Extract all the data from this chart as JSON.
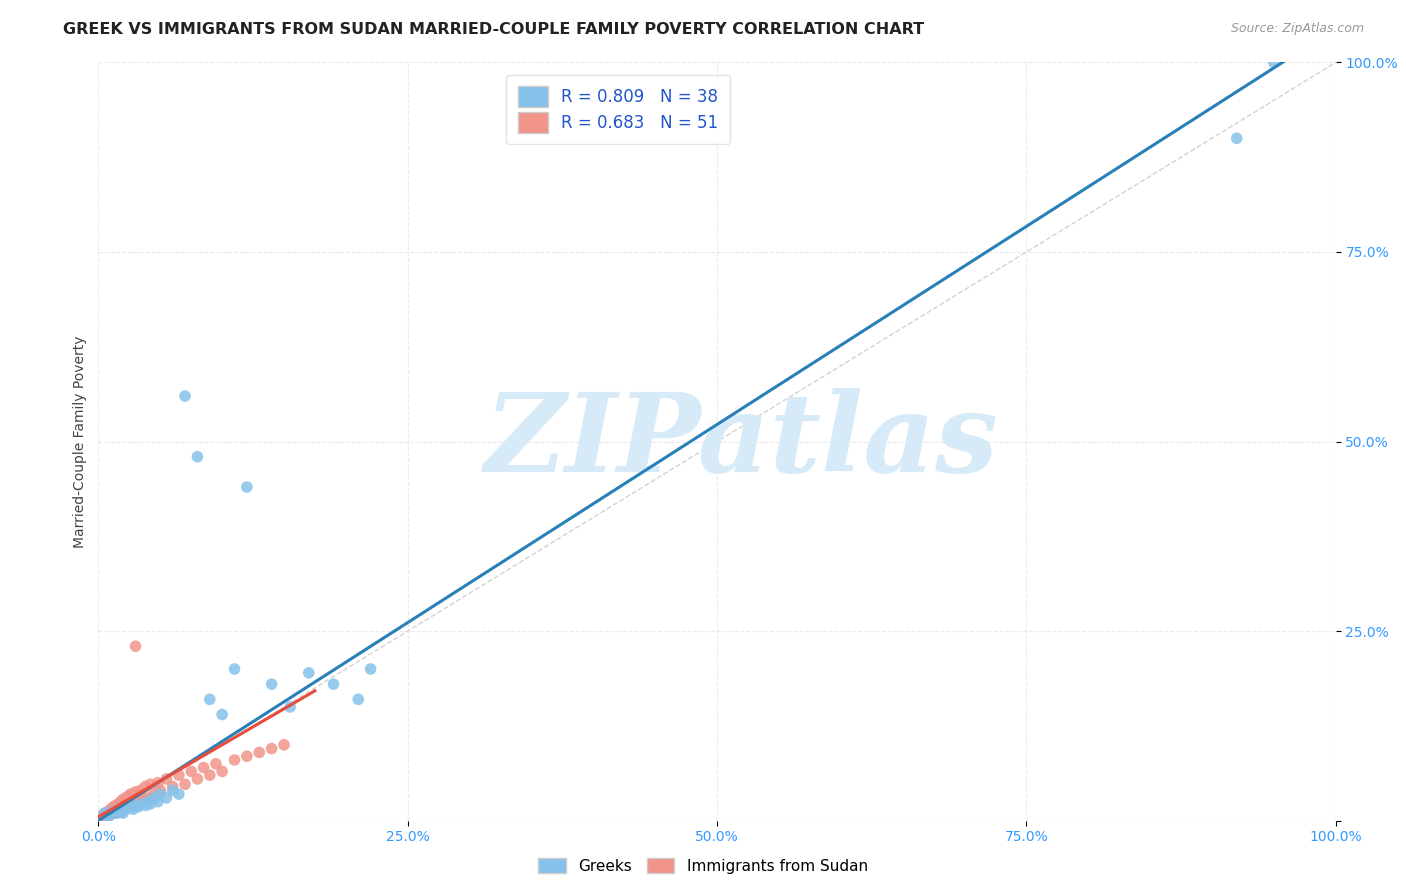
{
  "title": "GREEK VS IMMIGRANTS FROM SUDAN MARRIED-COUPLE FAMILY POVERTY CORRELATION CHART",
  "source": "Source: ZipAtlas.com",
  "ylabel": "Married-Couple Family Poverty",
  "xlim": [
    0,
    1
  ],
  "ylim": [
    0,
    1
  ],
  "xticks": [
    0.0,
    0.25,
    0.5,
    0.75,
    1.0
  ],
  "yticks": [
    0.0,
    0.25,
    0.5,
    0.75,
    1.0
  ],
  "xticklabels": [
    "0.0%",
    "25.0%",
    "50.0%",
    "75.0%",
    "100.0%"
  ],
  "yticklabels": [
    "",
    "25.0%",
    "50.0%",
    "75.0%",
    "100.0%"
  ],
  "greek_color": "#85C1E9",
  "sudan_color": "#F1948A",
  "greek_line_color": "#2980B9",
  "sudan_line_color": "#E74C3C",
  "ref_line_color": "#C8C8C8",
  "watermark_color": "#D6EAF8",
  "watermark_text": "ZIPatlas",
  "background_color": "#ffffff",
  "title_fontsize": 11.5,
  "axis_label_fontsize": 10,
  "tick_fontsize": 10,
  "tick_color": "#3399FF",
  "greek_x": [
    0.005,
    0.008,
    0.01,
    0.012,
    0.014,
    0.016,
    0.018,
    0.02,
    0.022,
    0.024,
    0.026,
    0.028,
    0.03,
    0.032,
    0.035,
    0.038,
    0.04,
    0.042,
    0.045,
    0.048,
    0.05,
    0.055,
    0.06,
    0.065,
    0.07,
    0.08,
    0.09,
    0.1,
    0.11,
    0.12,
    0.14,
    0.155,
    0.17,
    0.19,
    0.21,
    0.22,
    0.95,
    0.92
  ],
  "greek_y": [
    0.01,
    0.005,
    0.008,
    0.012,
    0.01,
    0.015,
    0.012,
    0.01,
    0.015,
    0.02,
    0.018,
    0.015,
    0.02,
    0.018,
    0.022,
    0.02,
    0.025,
    0.022,
    0.03,
    0.025,
    0.035,
    0.03,
    0.04,
    0.035,
    0.56,
    0.48,
    0.16,
    0.14,
    0.2,
    0.44,
    0.18,
    0.15,
    0.195,
    0.18,
    0.16,
    0.2,
    1.0,
    0.9
  ],
  "sudan_x": [
    0.003,
    0.004,
    0.005,
    0.006,
    0.007,
    0.008,
    0.009,
    0.01,
    0.011,
    0.012,
    0.013,
    0.014,
    0.015,
    0.016,
    0.017,
    0.018,
    0.019,
    0.02,
    0.021,
    0.022,
    0.023,
    0.024,
    0.025,
    0.026,
    0.028,
    0.03,
    0.032,
    0.034,
    0.036,
    0.038,
    0.04,
    0.042,
    0.045,
    0.048,
    0.05,
    0.055,
    0.06,
    0.065,
    0.07,
    0.075,
    0.08,
    0.085,
    0.09,
    0.095,
    0.1,
    0.11,
    0.12,
    0.13,
    0.14,
    0.15,
    0.03
  ],
  "sudan_y": [
    0.003,
    0.008,
    0.005,
    0.01,
    0.007,
    0.012,
    0.009,
    0.015,
    0.01,
    0.018,
    0.012,
    0.02,
    0.01,
    0.022,
    0.015,
    0.025,
    0.012,
    0.028,
    0.015,
    0.03,
    0.018,
    0.032,
    0.02,
    0.035,
    0.022,
    0.038,
    0.025,
    0.04,
    0.028,
    0.045,
    0.03,
    0.048,
    0.035,
    0.05,
    0.04,
    0.055,
    0.045,
    0.06,
    0.048,
    0.065,
    0.055,
    0.07,
    0.06,
    0.075,
    0.065,
    0.08,
    0.085,
    0.09,
    0.095,
    0.1,
    0.23
  ],
  "greek_trend": [
    0.0,
    1.0
  ],
  "greek_trend_y": [
    0.005,
    1.02
  ],
  "sudan_trend_x": [
    0.0,
    0.17
  ],
  "sudan_trend_y": [
    0.005,
    0.175
  ]
}
